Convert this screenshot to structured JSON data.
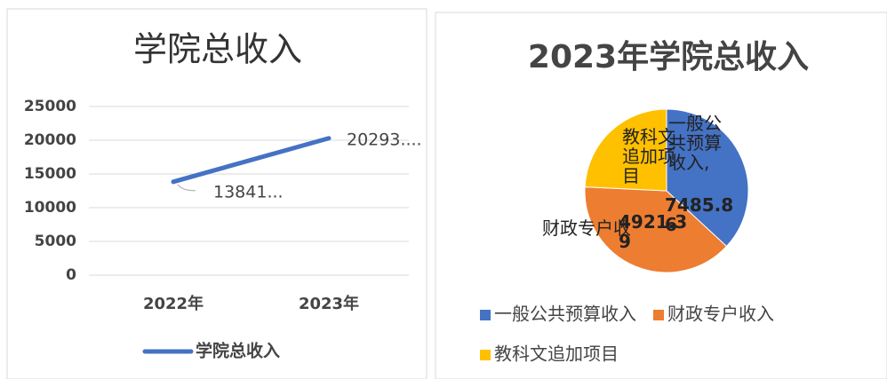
{
  "chart_data": [
    {
      "type": "line",
      "title": "学院总收入",
      "categories": [
        "2022年",
        "2023年"
      ],
      "series": [
        {
          "name": "学院总收入",
          "color": "#4472c4",
          "values": [
            13841,
            20293
          ],
          "value_labels": [
            "13841...",
            "20293...."
          ]
        }
      ],
      "ylim": [
        0,
        25000
      ],
      "yticks": [
        0,
        5000,
        10000,
        15000,
        20000,
        25000
      ],
      "grid": true,
      "legend": "bottom"
    },
    {
      "type": "pie",
      "title": "2023年学院总收入",
      "categories": [
        "一般公共预算收入",
        "财政专户收入",
        "教科文追加项目"
      ],
      "values": [
        7485.86,
        7885.75,
        4921.39
      ],
      "colors": [
        "#4472c4",
        "#ed7d31",
        "#ffc000"
      ],
      "label_names": [
        "一般公共预算收入,",
        "财政专户收",
        "教科文追加项目"
      ],
      "value_labels": [
        "7485.86",
        null,
        "4921.39"
      ],
      "legend": "bottom"
    }
  ]
}
